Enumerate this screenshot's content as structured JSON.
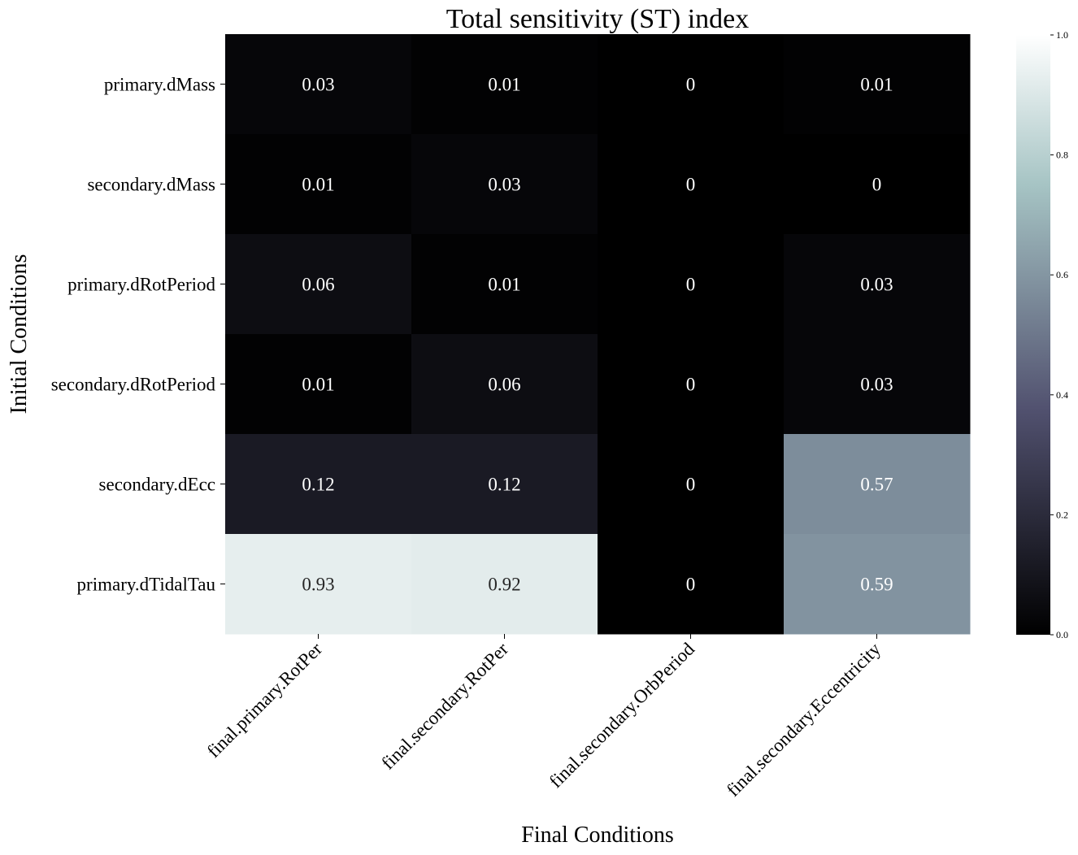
{
  "chart_data": {
    "type": "heatmap",
    "title": "Total sensitivity (ST) index",
    "xlabel": "Final Conditions",
    "ylabel": "Initial Conditions",
    "rows": [
      "primary.dMass",
      "secondary.dMass",
      "primary.dRotPeriod",
      "secondary.dRotPeriod",
      "secondary.dEcc",
      "primary.dTidalTau"
    ],
    "columns": [
      "final.primary.RotPer",
      "final.secondary.RotPer",
      "final.secondary.OrbPeriod",
      "final.secondary.Eccentricity"
    ],
    "values": [
      [
        0.03,
        0.01,
        0,
        0.01
      ],
      [
        0.01,
        0.03,
        0,
        0
      ],
      [
        0.06,
        0.01,
        0,
        0.03
      ],
      [
        0.01,
        0.06,
        0,
        0.03
      ],
      [
        0.12,
        0.12,
        0,
        0.57
      ],
      [
        0.93,
        0.92,
        0,
        0.59
      ]
    ],
    "value_labels": [
      [
        "0.03",
        "0.01",
        "0",
        "0.01"
      ],
      [
        "0.01",
        "0.03",
        "0",
        "0"
      ],
      [
        "0.06",
        "0.01",
        "0",
        "0.03"
      ],
      [
        "0.01",
        "0.06",
        "0",
        "0.03"
      ],
      [
        "0.12",
        "0.12",
        "0",
        "0.57"
      ],
      [
        "0.93",
        "0.92",
        "0",
        "0.59"
      ]
    ],
    "colorbar": {
      "range": [
        0.0,
        1.0
      ],
      "ticks": [
        0.0,
        0.2,
        0.4,
        0.6,
        0.8,
        1.0
      ],
      "tick_labels": [
        "0.0",
        "0.2",
        "0.4",
        "0.6",
        "0.8",
        "1.0"
      ],
      "colormap": "bone"
    }
  }
}
